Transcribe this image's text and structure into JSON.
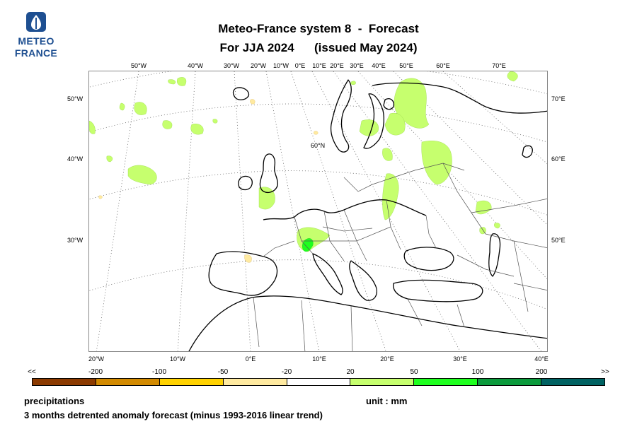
{
  "logo": {
    "line1": "METEO",
    "line2": "FRANCE",
    "color": "#1e4f91"
  },
  "title": {
    "line1": "Meteo-France system 8  -  Forecast",
    "line2": "For JJA 2024      (issued May 2024)"
  },
  "map": {
    "top_lon_labels": [
      "50°W",
      "40°W",
      "30°W",
      "20°W",
      "10°W",
      "0°E",
      "10°E",
      "20°E",
      "30°E",
      "40°E",
      "50°E",
      "60°E",
      "70°E"
    ],
    "left_lat_labels": [
      "50°W",
      "40°W",
      "30°W"
    ],
    "right_lat_labels": [
      "70°E",
      "60°E",
      "50°E"
    ],
    "bottom_lon_labels": [
      "20°W",
      "10°W",
      "0°E",
      "10°E",
      "20°E",
      "30°E",
      "40°E"
    ],
    "inner_label": "60°N",
    "colors": {
      "ocean": "#ffffff",
      "coast": "#000000",
      "border": "#555555",
      "grid": "#666666"
    }
  },
  "legend": {
    "under_label": "<<",
    "over_label": ">>",
    "thresholds": [
      "-200",
      "-100",
      "-50",
      "-20",
      "20",
      "50",
      "100",
      "200"
    ],
    "colors": [
      "#8b3a00",
      "#d28a00",
      "#ffd200",
      "#ffeaa0",
      "#ffffff",
      "#c6ff6e",
      "#1eff1e",
      "#0b9a3c",
      "#006262"
    ]
  },
  "footer": {
    "variable": "precipitations",
    "unit": "unit : mm",
    "description": "3 months detrented anomaly forecast (minus 1993-2016 linear trend)"
  }
}
